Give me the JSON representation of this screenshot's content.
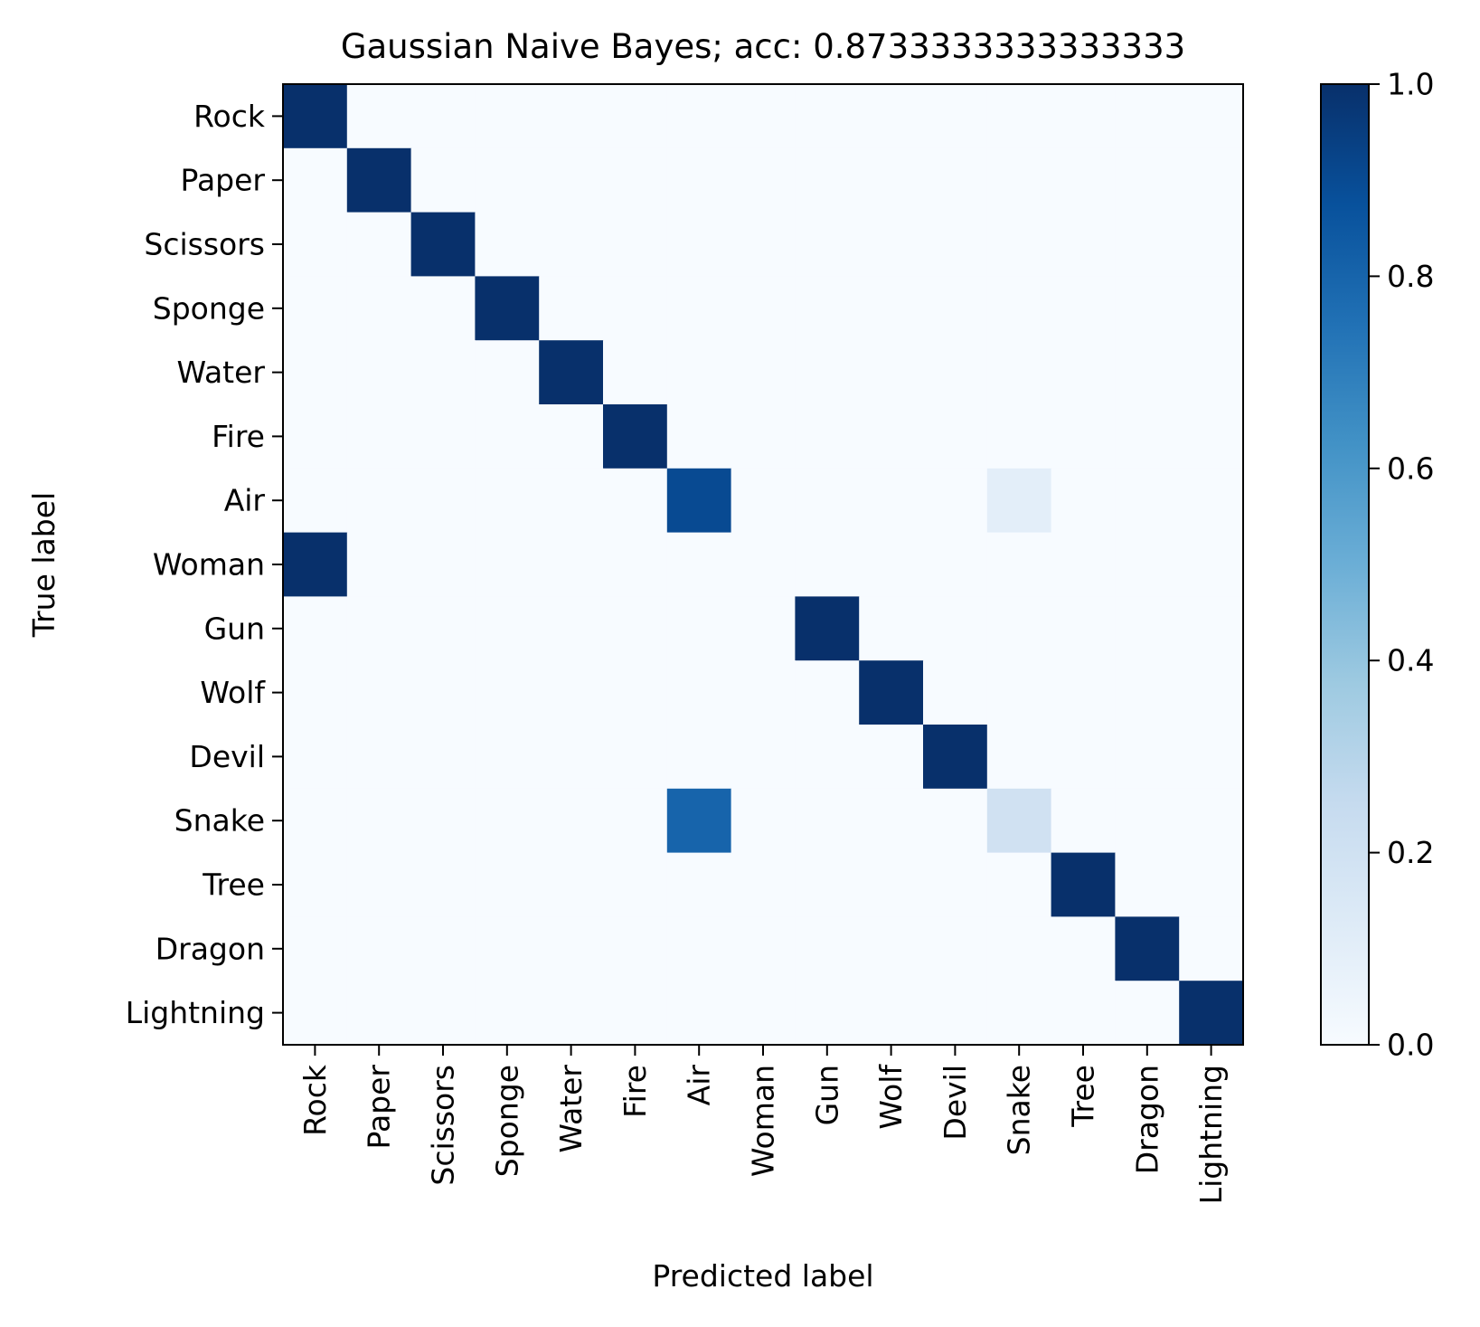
{
  "chart_data": {
    "type": "heatmap",
    "title": "Gaussian Naive Bayes; acc: 0.8733333333333333",
    "xlabel": "Predicted label",
    "ylabel": "True label",
    "x_categories": [
      "Rock",
      "Paper",
      "Scissors",
      "Sponge",
      "Water",
      "Fire",
      "Air",
      "Woman",
      "Gun",
      "Wolf",
      "Devil",
      "Snake",
      "Tree",
      "Dragon",
      "Lightning"
    ],
    "y_categories": [
      "Rock",
      "Paper",
      "Scissors",
      "Sponge",
      "Water",
      "Fire",
      "Air",
      "Woman",
      "Gun",
      "Wolf",
      "Devil",
      "Snake",
      "Tree",
      "Dragon",
      "Lightning"
    ],
    "matrix": [
      [
        1,
        0,
        0,
        0,
        0,
        0,
        0,
        0,
        0,
        0,
        0,
        0,
        0,
        0,
        0
      ],
      [
        0,
        1,
        0,
        0,
        0,
        0,
        0,
        0,
        0,
        0,
        0,
        0,
        0,
        0,
        0
      ],
      [
        0,
        0,
        1,
        0,
        0,
        0,
        0,
        0,
        0,
        0,
        0,
        0,
        0,
        0,
        0
      ],
      [
        0,
        0,
        0,
        1,
        0,
        0,
        0,
        0,
        0,
        0,
        0,
        0,
        0,
        0,
        0
      ],
      [
        0,
        0,
        0,
        0,
        1,
        0,
        0,
        0,
        0,
        0,
        0,
        0,
        0,
        0,
        0
      ],
      [
        0,
        0,
        0,
        0,
        0,
        1,
        0,
        0,
        0,
        0,
        0,
        0,
        0,
        0,
        0
      ],
      [
        0,
        0,
        0,
        0,
        0,
        0,
        0.9,
        0,
        0,
        0,
        0,
        0.1,
        0,
        0,
        0
      ],
      [
        1,
        0,
        0,
        0,
        0,
        0,
        0,
        0,
        0,
        0,
        0,
        0,
        0,
        0,
        0
      ],
      [
        0,
        0,
        0,
        0,
        0,
        0,
        0,
        0,
        1,
        0,
        0,
        0,
        0,
        0,
        0
      ],
      [
        0,
        0,
        0,
        0,
        0,
        0,
        0,
        0,
        0,
        1,
        0,
        0,
        0,
        0,
        0
      ],
      [
        0,
        0,
        0,
        0,
        0,
        0,
        0,
        0,
        0,
        0,
        1,
        0,
        0,
        0,
        0
      ],
      [
        0,
        0,
        0,
        0,
        0,
        0,
        0.8,
        0,
        0,
        0,
        0,
        0.2,
        0,
        0,
        0
      ],
      [
        0,
        0,
        0,
        0,
        0,
        0,
        0,
        0,
        0,
        0,
        0,
        0,
        1,
        0,
        0
      ],
      [
        0,
        0,
        0,
        0,
        0,
        0,
        0,
        0,
        0,
        0,
        0,
        0,
        0,
        1,
        0
      ],
      [
        0,
        0,
        0,
        0,
        0,
        0,
        0,
        0,
        0,
        0,
        0,
        0,
        0,
        0,
        1
      ]
    ],
    "colormap": "Blues",
    "colorbar": {
      "range": [
        0.0,
        1.0
      ],
      "ticks": [
        0.0,
        0.2,
        0.4,
        0.6,
        0.8,
        1.0
      ],
      "tick_labels": [
        "0.0",
        "0.2",
        "0.4",
        "0.6",
        "0.8",
        "1.0"
      ]
    },
    "grid": false
  }
}
